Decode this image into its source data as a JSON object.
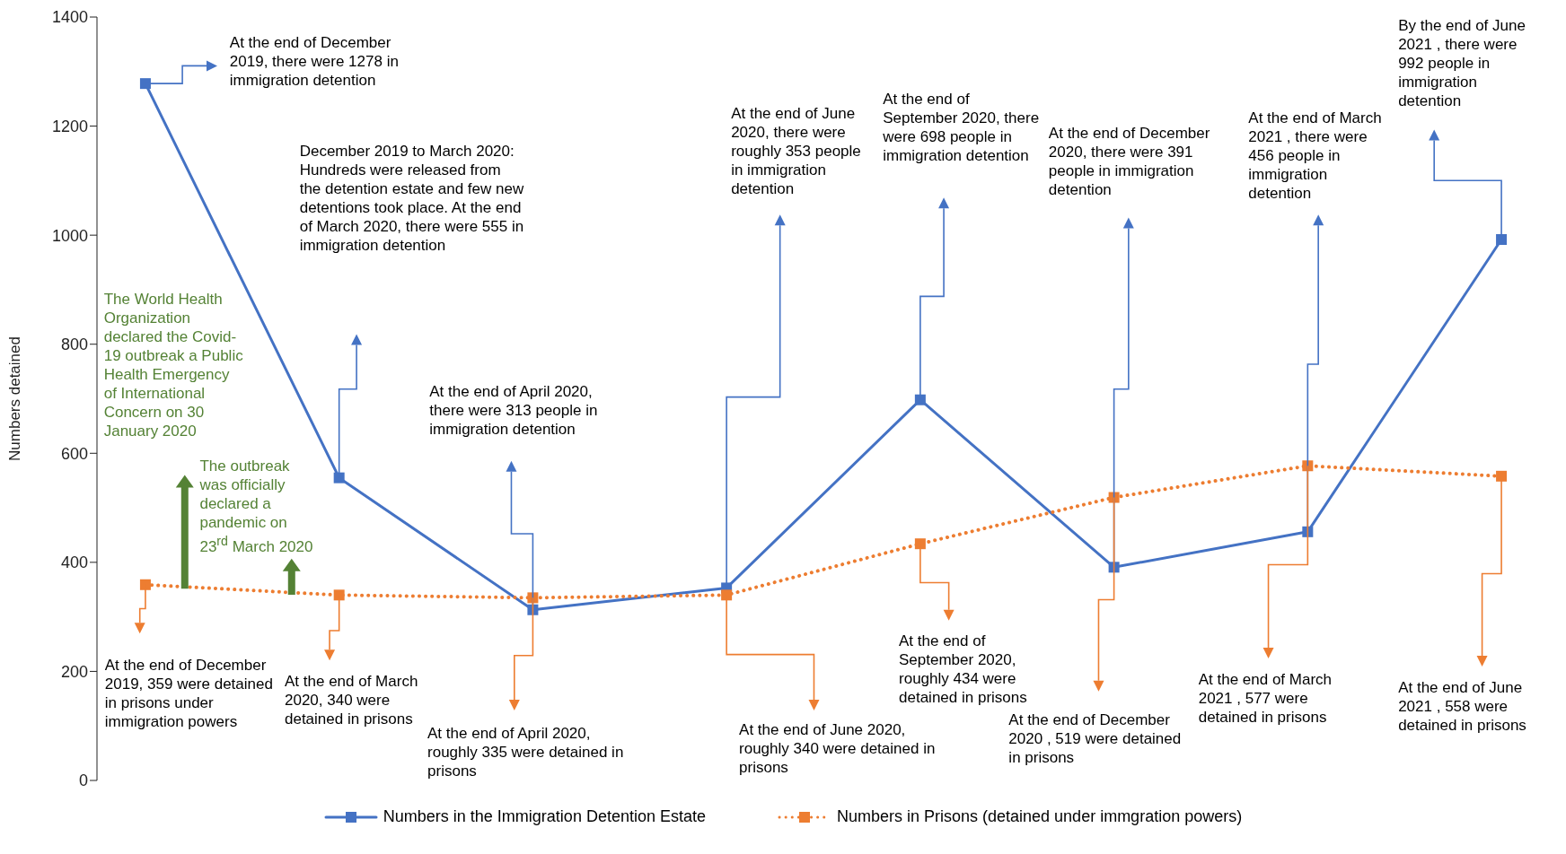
{
  "chart_data": {
    "type": "line",
    "ylabel": "Numbers detained",
    "categories": [
      null,
      null,
      null,
      null,
      null,
      null,
      null,
      null
    ],
    "ylim": [
      0,
      1400
    ],
    "yticks": [
      0,
      200,
      400,
      600,
      800,
      1000,
      1200,
      1400
    ],
    "legend": "bottom",
    "series": [
      {
        "name": "Numbers in the Immigration Detention Estate",
        "color": "#4472c4",
        "marker": "square",
        "line_style": "solid",
        "values": [
          1278,
          555,
          313,
          353,
          698,
          391,
          456,
          992
        ]
      },
      {
        "name": "Numbers in Prisons (detained under immgration powers)",
        "color": "#ed7d31",
        "marker": "square",
        "line_style": "dotted",
        "values": [
          359,
          340,
          335,
          340,
          434,
          519,
          577,
          558
        ]
      }
    ],
    "annotations": [
      "At the end of December 2019, there were 1278 in immigration detention",
      "December 2019 to March 2020: Hundreds were released from the detention estate and few new detentions took place. At the end of March 2020, there were 555 in immigration detention",
      "At the end of April 2020, there were 313 people in immigration detention",
      "At the end of June 2020, there were roughly 353 people in immigration detention",
      "At the end of September 2020, there were 698 people in immigration detention",
      "At the end of December 2020, there were 391 people in immigration detention",
      "At the end of March 2021 , there were 456 people in immigration detention",
      "By the end of June 2021 , there were 992 people in immigration detention",
      "At the end of December 2019, 359 were detained in prisons under immigration powers",
      "At the end of March 2020, 340 were detained in prisons",
      "At the end of April 2020, roughly 335 were detained in prisons",
      "At the end of June 2020, roughly 340 were detained in prisons",
      "At the end of September 2020, roughly 434 were detained in prisons",
      "At the end of December 2020 , 519 were detained in prisons",
      "At the end of March 2021 , 577 were detained in prisons",
      "At the end of June 2021 , 558 were detained in prisons",
      "The World Health Organization declared the Covid-19 outbreak a Public Health Emergency of International Concern on 30 January 2020",
      "The outbreak was officially declared a pandemic on 23$^{rd}$ March 2020"
    ]
  }
}
